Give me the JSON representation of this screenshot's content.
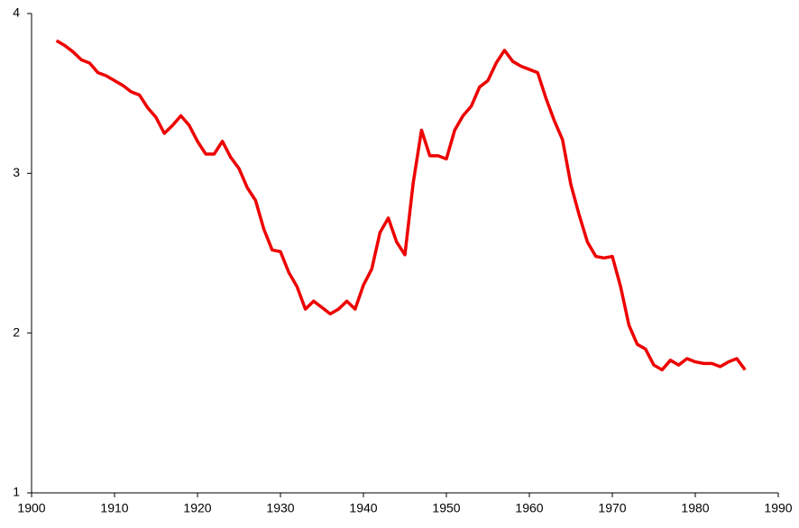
{
  "chart_data": {
    "type": "line",
    "x": [
      1903,
      1904,
      1905,
      1906,
      1907,
      1908,
      1909,
      1910,
      1911,
      1912,
      1913,
      1914,
      1915,
      1916,
      1917,
      1918,
      1919,
      1920,
      1921,
      1922,
      1923,
      1924,
      1925,
      1926,
      1927,
      1928,
      1929,
      1930,
      1931,
      1932,
      1933,
      1934,
      1935,
      1936,
      1937,
      1938,
      1939,
      1940,
      1941,
      1942,
      1943,
      1944,
      1945,
      1946,
      1947,
      1948,
      1949,
      1950,
      1951,
      1952,
      1953,
      1954,
      1955,
      1956,
      1957,
      1958,
      1959,
      1960,
      1961,
      1962,
      1963,
      1964,
      1965,
      1966,
      1967,
      1968,
      1969,
      1970,
      1971,
      1972,
      1973,
      1974,
      1975,
      1976,
      1977,
      1978,
      1979,
      1980,
      1981,
      1982,
      1983,
      1984,
      1985,
      1986
    ],
    "series": [
      {
        "color": "#ee0000",
        "values": [
          3.83,
          3.8,
          3.76,
          3.71,
          3.69,
          3.63,
          3.61,
          3.58,
          3.55,
          3.51,
          3.49,
          3.41,
          3.35,
          3.25,
          3.3,
          3.36,
          3.3,
          3.2,
          3.12,
          3.12,
          3.2,
          3.1,
          3.03,
          2.91,
          2.83,
          2.65,
          2.52,
          2.51,
          2.38,
          2.29,
          2.15,
          2.2,
          2.16,
          2.12,
          2.15,
          2.2,
          2.15,
          2.3,
          2.4,
          2.63,
          2.72,
          2.57,
          2.49,
          2.94,
          3.27,
          3.11,
          3.11,
          3.09,
          3.27,
          3.36,
          3.42,
          3.54,
          3.58,
          3.69,
          3.77,
          3.7,
          3.67,
          3.65,
          3.63,
          3.47,
          3.33,
          3.21,
          2.93,
          2.74,
          2.57,
          2.48,
          2.47,
          2.48,
          2.29,
          2.05,
          1.93,
          1.9,
          1.8,
          1.77,
          1.83,
          1.8,
          1.84,
          1.82,
          1.81,
          1.81,
          1.79,
          1.82,
          1.84,
          1.77
        ]
      }
    ],
    "xlim": [
      1900,
      1990
    ],
    "xticks": [
      1900,
      1910,
      1920,
      1930,
      1940,
      1950,
      1960,
      1970,
      1980,
      1990
    ],
    "ylim": [
      1,
      4
    ],
    "yticks": [
      1,
      2,
      3,
      4
    ],
    "grid": false
  }
}
